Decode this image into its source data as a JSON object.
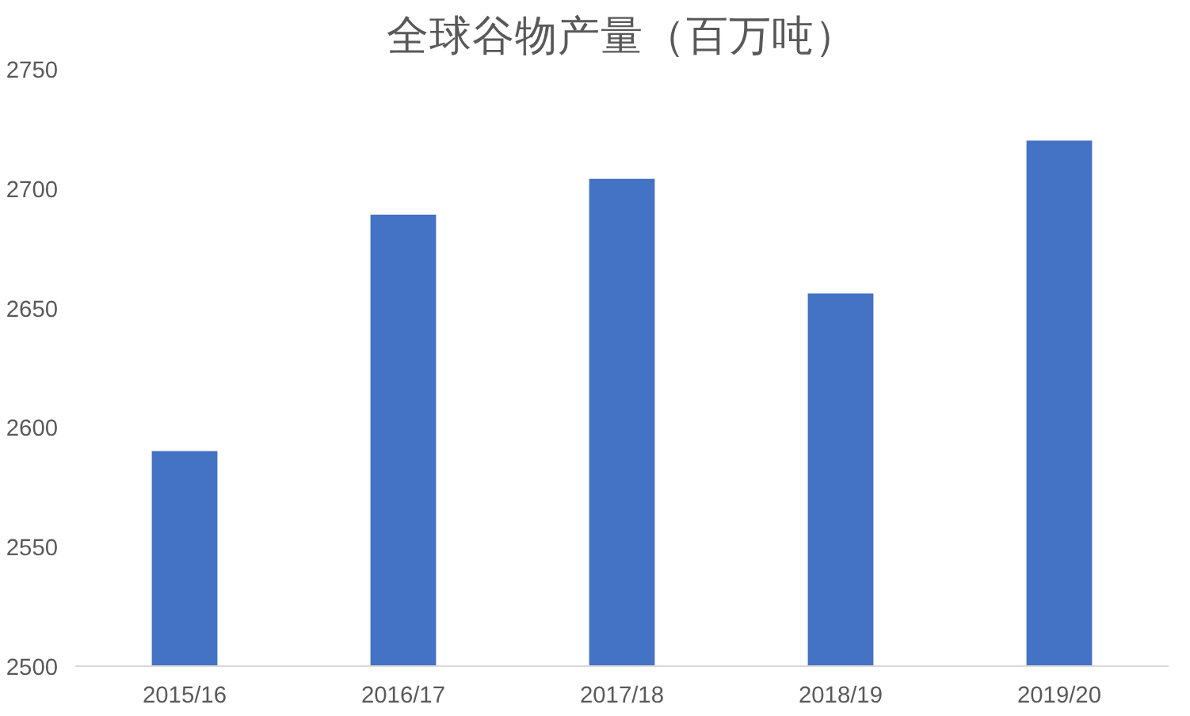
{
  "chart_data": {
    "type": "bar",
    "title": "全球谷物产量（百万吨）",
    "categories": [
      "2015/16",
      "2016/17",
      "2017/18",
      "2018/19",
      "2019/20"
    ],
    "values": [
      2590,
      2689,
      2704,
      2656,
      2720
    ],
    "color": "#4472c4",
    "ylim": [
      2500,
      2750
    ],
    "yticks": [
      2500,
      2550,
      2600,
      2650,
      2700,
      2750
    ],
    "grid": false
  }
}
